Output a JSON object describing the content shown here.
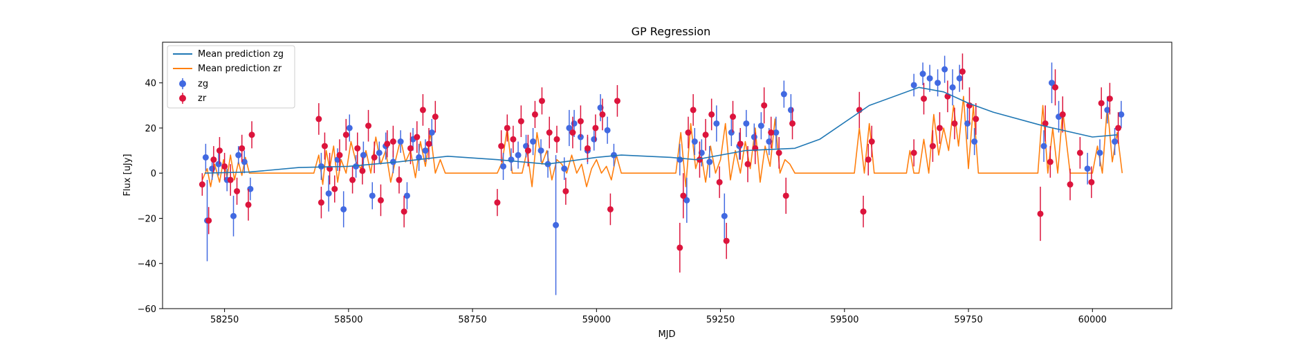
{
  "chart_data": {
    "type": "scatter",
    "title": "GP Regression",
    "xlabel": "MJD",
    "ylabel": "Flux [uJy]",
    "xlim": [
      58125,
      60160
    ],
    "ylim": [
      -60,
      58
    ],
    "xticks": [
      58250,
      58500,
      58750,
      59000,
      59250,
      59500,
      59750,
      60000
    ],
    "xtick_labels": [
      "58250",
      "58500",
      "58750",
      "59000",
      "59250",
      "59500",
      "59750",
      "60000"
    ],
    "yticks": [
      -60,
      -40,
      -20,
      0,
      20,
      40
    ],
    "ytick_labels": [
      "−60",
      "−40",
      "−20",
      "0",
      "20",
      "40"
    ],
    "legend_position": "top-left",
    "colors": {
      "zg_line": "#1f77b4",
      "zr_line": "#ff7f0e",
      "zg_points": "#4169e1",
      "zr_points": "#dc143c"
    },
    "series": [
      {
        "name": "Mean prediction zg",
        "kind": "line",
        "x": [
          58210,
          58300,
          58400,
          58500,
          58600,
          58700,
          58800,
          58900,
          59000,
          59050,
          59150,
          59200,
          59300,
          59400,
          59450,
          59550,
          59650,
          59700,
          59750,
          59800,
          59900,
          60000,
          60050
        ],
        "y": [
          0,
          0.5,
          2.5,
          3,
          5,
          7.5,
          6,
          4,
          7,
          8,
          7,
          6,
          10,
          11,
          15,
          30,
          38,
          36,
          31,
          27,
          21,
          16,
          17
        ]
      },
      {
        "name": "Mean prediction zr",
        "kind": "line",
        "x": [
          58205,
          58215,
          58222,
          58230,
          58240,
          58248,
          58255,
          58262,
          58270,
          58278,
          58285,
          58292,
          58300,
          58310,
          58430,
          58440,
          58448,
          58455,
          58462,
          58470,
          58478,
          58485,
          58495,
          58505,
          58515,
          58525,
          58535,
          58545,
          58555,
          58565,
          58575,
          58585,
          58595,
          58605,
          58615,
          58625,
          58635,
          58645,
          58655,
          58665,
          58675,
          58685,
          58695,
          58800,
          58810,
          58820,
          58830,
          58840,
          58850,
          58860,
          58870,
          58880,
          58890,
          58900,
          58910,
          58920,
          58930,
          58940,
          58950,
          58960,
          58970,
          58980,
          58990,
          59000,
          59010,
          59020,
          59030,
          59040,
          59050,
          59160,
          59170,
          59180,
          59190,
          59200,
          59210,
          59220,
          59230,
          59240,
          59250,
          59260,
          59270,
          59280,
          59290,
          59300,
          59310,
          59320,
          59330,
          59340,
          59350,
          59360,
          59370,
          59380,
          59390,
          59400,
          59520,
          59530,
          59540,
          59550,
          59560,
          59625,
          59632,
          59640,
          59650,
          59660,
          59670,
          59680,
          59690,
          59700,
          59710,
          59720,
          59730,
          59740,
          59750,
          59760,
          59770,
          59890,
          59900,
          59910,
          59920,
          59930,
          59940,
          59955,
          59965,
          60000,
          60010,
          60020,
          60030,
          60040,
          60050,
          60060
        ],
        "y": [
          -3,
          2,
          -6,
          4,
          -4,
          6,
          -2,
          8,
          -3,
          5,
          -1,
          7,
          0,
          0,
          0,
          8,
          -5,
          10,
          2,
          12,
          -4,
          6,
          0,
          14,
          5,
          2,
          10,
          0,
          16,
          4,
          10,
          -4,
          6,
          15,
          5,
          10,
          -2,
          14,
          3,
          18,
          0,
          6,
          0,
          0,
          5,
          20,
          0,
          0,
          0,
          10,
          -6,
          18,
          4,
          10,
          -3,
          6,
          4,
          0,
          8,
          0,
          4,
          -6,
          2,
          6,
          0,
          3,
          -3,
          8,
          0,
          0,
          18,
          -6,
          22,
          2,
          10,
          -4,
          12,
          0,
          6,
          22,
          -3,
          10,
          0,
          14,
          2,
          20,
          -4,
          12,
          3,
          24,
          0,
          6,
          4,
          0,
          0,
          20,
          0,
          22,
          0,
          0,
          10,
          0,
          0,
          15,
          0,
          26,
          8,
          20,
          10,
          30,
          12,
          34,
          2,
          30,
          0,
          0,
          30,
          0,
          20,
          0,
          28,
          0,
          0,
          0,
          12,
          0,
          30,
          5,
          18,
          0
        ]
      },
      {
        "name": "zg",
        "kind": "errorbar",
        "x": [
          58212,
          58215,
          58225,
          58238,
          58255,
          58268,
          58278,
          58290,
          58302,
          58445,
          58460,
          58478,
          58490,
          58502,
          58515,
          58530,
          58548,
          58562,
          58575,
          58590,
          58605,
          58618,
          58630,
          58642,
          58655,
          58668,
          58812,
          58828,
          58842,
          58858,
          58872,
          58888,
          58902,
          58918,
          58935,
          58945,
          58955,
          58968,
          58982,
          58995,
          59008,
          59022,
          59035,
          59168,
          59182,
          59198,
          59212,
          59228,
          59242,
          59258,
          59272,
          59288,
          59302,
          59318,
          59332,
          59348,
          59362,
          59378,
          59392,
          59640,
          59658,
          59672,
          59688,
          59702,
          59718,
          59732,
          59748,
          59762,
          59902,
          59918,
          59932,
          59990,
          60015,
          60030,
          60045,
          60058
        ],
        "y": [
          7,
          -21,
          2,
          4,
          -3,
          -19,
          8,
          5,
          -7,
          3,
          -9,
          6,
          -16,
          20,
          3,
          8,
          -10,
          9,
          12,
          5,
          14,
          -10,
          15,
          7,
          10,
          18,
          3,
          6,
          8,
          12,
          14,
          10,
          4,
          -23,
          2,
          20,
          22,
          16,
          10,
          15,
          29,
          19,
          8,
          6,
          -12,
          14,
          9,
          5,
          22,
          -19,
          18,
          12,
          22,
          16,
          21,
          14,
          18,
          35,
          28,
          39,
          44,
          42,
          40,
          46,
          38,
          42,
          22,
          14,
          12,
          40,
          25,
          2,
          9,
          28,
          14,
          26
        ],
        "err": [
          6,
          18,
          5,
          5,
          5,
          9,
          4,
          5,
          5,
          6,
          8,
          5,
          8,
          6,
          5,
          6,
          6,
          5,
          6,
          5,
          5,
          6,
          5,
          6,
          5,
          6,
          6,
          5,
          6,
          5,
          6,
          5,
          6,
          31,
          5,
          8,
          6,
          6,
          6,
          5,
          6,
          6,
          5,
          7,
          10,
          6,
          6,
          7,
          8,
          10,
          6,
          6,
          6,
          6,
          6,
          6,
          7,
          6,
          7,
          5,
          5,
          6,
          6,
          6,
          8,
          6,
          7,
          6,
          7,
          9,
          7,
          7,
          6,
          6,
          6,
          6
        ]
      },
      {
        "name": "zr",
        "kind": "errorbar",
        "x": [
          58205,
          58218,
          58228,
          58240,
          58250,
          58262,
          58275,
          58285,
          58298,
          58305,
          58440,
          58445,
          58452,
          58462,
          58472,
          58482,
          58495,
          58508,
          58518,
          58528,
          58540,
          58552,
          58565,
          58578,
          58590,
          58602,
          58612,
          58625,
          58638,
          58650,
          58662,
          58675,
          58800,
          58808,
          58820,
          58832,
          58848,
          58862,
          58876,
          58890,
          58905,
          58920,
          58938,
          58952,
          58968,
          58982,
          58998,
          59012,
          59028,
          59042,
          59168,
          59175,
          59185,
          59195,
          59208,
          59220,
          59232,
          59248,
          59262,
          59275,
          59290,
          59305,
          59320,
          59338,
          59352,
          59368,
          59382,
          59395,
          59530,
          59538,
          59548,
          59555,
          59640,
          59660,
          59678,
          59692,
          59708,
          59722,
          59738,
          59752,
          59765,
          59895,
          59905,
          59915,
          59925,
          59940,
          59955,
          59975,
          59998,
          60018,
          60035,
          60052
        ],
        "y": [
          -5,
          -21,
          6,
          10,
          3,
          -3,
          -8,
          11,
          -14,
          17,
          24,
          -13,
          12,
          2,
          -7,
          8,
          17,
          -3,
          11,
          1,
          21,
          7,
          -12,
          13,
          14,
          -3,
          -17,
          11,
          16,
          28,
          13,
          25,
          -13,
          12,
          20,
          15,
          23,
          10,
          26,
          32,
          18,
          15,
          -8,
          18,
          23,
          11,
          20,
          26,
          -16,
          32,
          -33,
          -10,
          18,
          28,
          6,
          17,
          26,
          -4,
          -30,
          25,
          13,
          4,
          11,
          30,
          18,
          9,
          -10,
          22,
          28,
          -17,
          6,
          14,
          9,
          33,
          12,
          20,
          34,
          22,
          45,
          30,
          24,
          -18,
          22,
          5,
          38,
          26,
          -5,
          9,
          -4,
          31,
          33,
          20
        ],
        "err": [
          5,
          6,
          6,
          6,
          6,
          7,
          6,
          6,
          7,
          6,
          7,
          7,
          6,
          7,
          6,
          7,
          7,
          6,
          7,
          6,
          7,
          7,
          7,
          6,
          7,
          6,
          7,
          7,
          7,
          7,
          7,
          7,
          6,
          7,
          6,
          6,
          7,
          7,
          6,
          6,
          7,
          6,
          6,
          7,
          7,
          6,
          6,
          7,
          7,
          7,
          11,
          10,
          7,
          7,
          8,
          7,
          7,
          7,
          8,
          7,
          7,
          8,
          7,
          8,
          7,
          7,
          8,
          7,
          8,
          7,
          7,
          7,
          6,
          7,
          7,
          7,
          7,
          7,
          8,
          8,
          7,
          12,
          8,
          7,
          8,
          8,
          7,
          7,
          7,
          7,
          7,
          7
        ]
      }
    ]
  }
}
